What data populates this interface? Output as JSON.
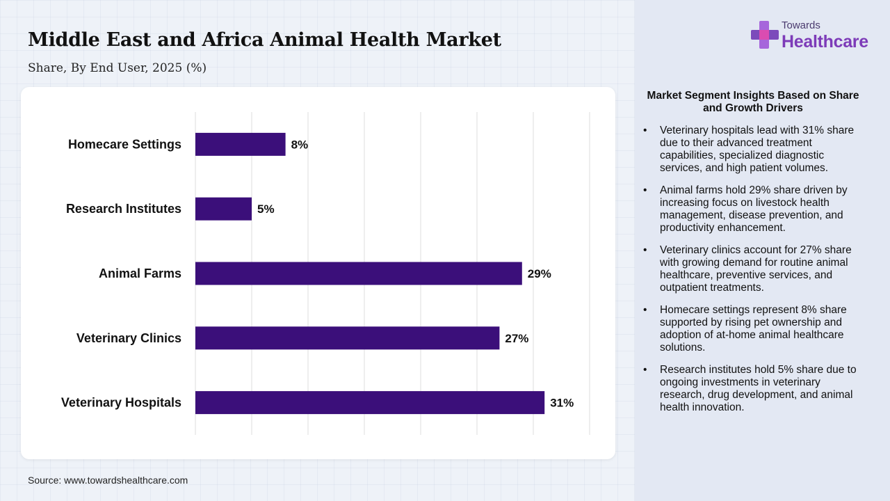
{
  "header": {
    "title": "Middle East and Africa Animal Health Market",
    "subtitle": "Share, By End User, 2025 (%)"
  },
  "logo": {
    "line1": "Towards",
    "line2": "Healthcare"
  },
  "source": "Source: www.towardshealthcare.com",
  "colors": {
    "bar": "#3b0f7a",
    "accent": "#7d3bb8",
    "panel": "#e3e8f3"
  },
  "chart_data": {
    "type": "bar",
    "orientation": "horizontal",
    "categories": [
      "Homecare Settings",
      "Research Institutes",
      "Animal Farms",
      "Veterinary Clinics",
      "Veterinary Hospitals"
    ],
    "values": [
      8,
      5,
      29,
      27,
      31
    ],
    "value_labels": [
      "8%",
      "5%",
      "29%",
      "27%",
      "31%"
    ],
    "xlim": [
      0,
      35
    ],
    "grid": true,
    "legend": "none"
  },
  "insights": {
    "title": "Market Segment Insights Based on Share and Growth Drivers",
    "items": [
      "Veterinary hospitals lead with 31% share due to their advanced treatment capabilities, specialized diagnostic services, and high patient volumes.",
      "Animal farms hold 29% share driven by increasing focus on livestock health management, disease prevention, and productivity enhancement.",
      "Veterinary clinics account for 27% share with growing demand for routine animal healthcare, preventive services, and outpatient treatments.",
      "Homecare settings represent 8% share supported by rising pet ownership and adoption of at-home animal healthcare solutions.",
      "Research institutes hold 5% share due to ongoing investments in veterinary research, drug development, and animal health innovation."
    ]
  }
}
